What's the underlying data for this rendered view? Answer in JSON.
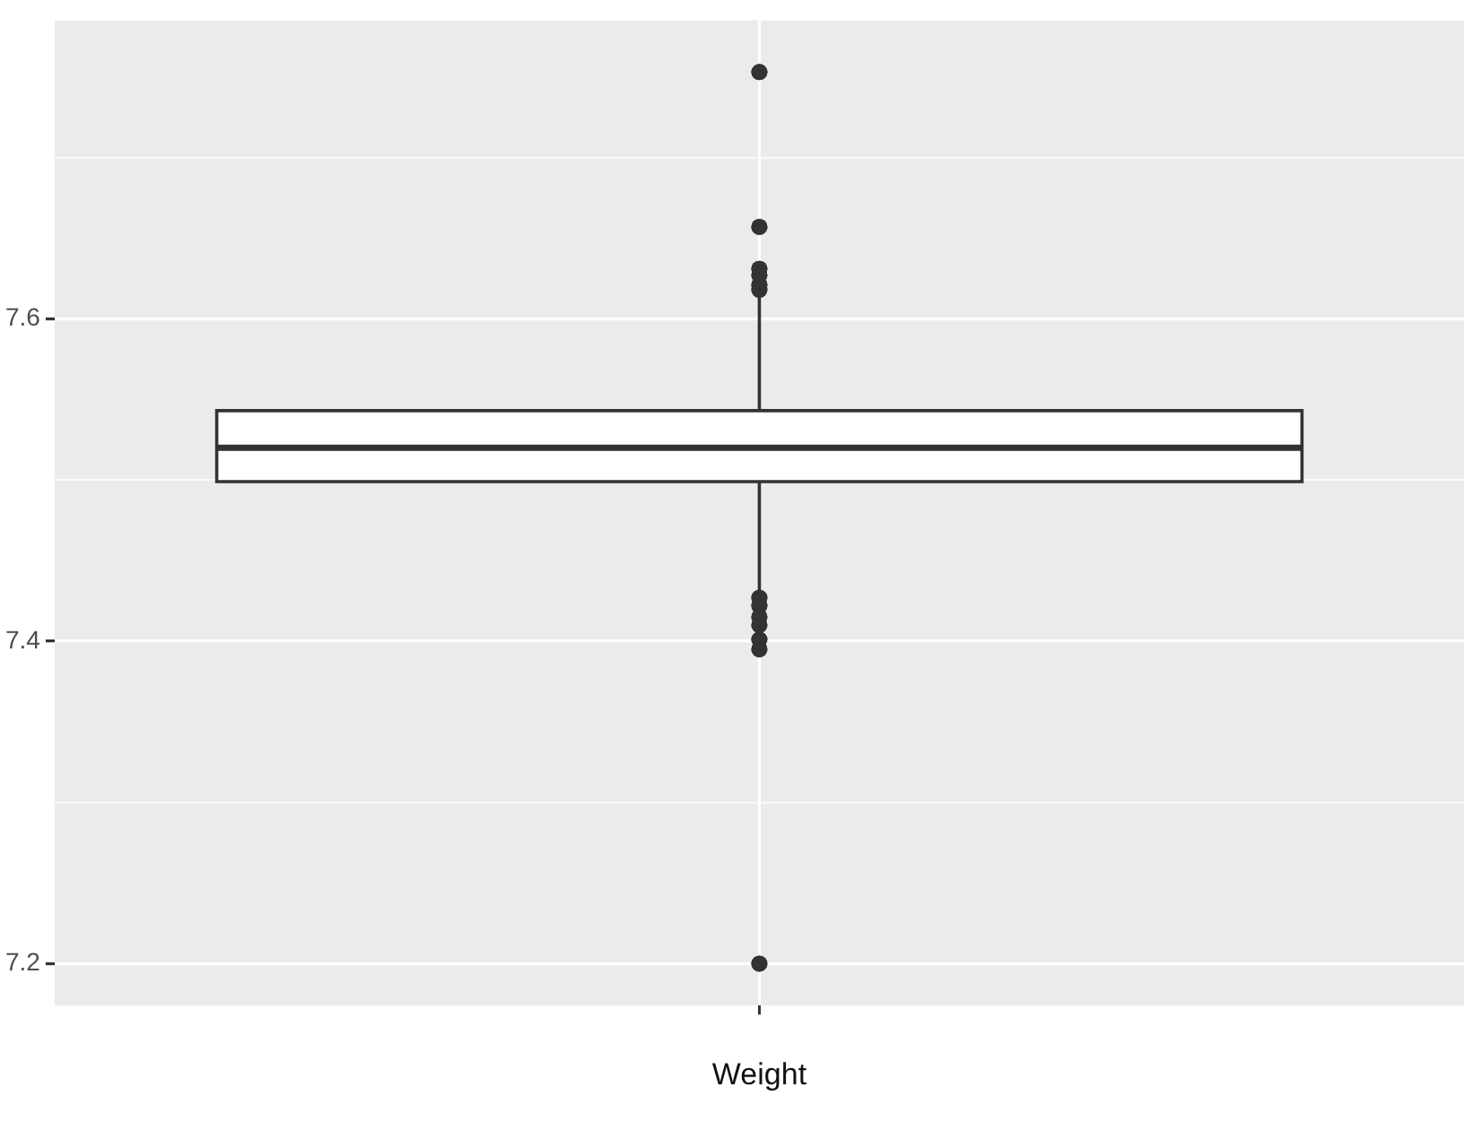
{
  "chart_data": {
    "type": "box",
    "categories": [
      "Weight"
    ],
    "boxes": [
      {
        "low": 7.429,
        "q1": 7.499,
        "median": 7.52,
        "q3": 7.543,
        "high": 7.613,
        "outliers": [
          7.753,
          7.657,
          7.631,
          7.627,
          7.621,
          7.618,
          7.427,
          7.422,
          7.415,
          7.41,
          7.401,
          7.395,
          7.2
        ]
      }
    ],
    "color": "#ffffff",
    "ylim": [
      7.174,
      7.785
    ],
    "yticks": [
      7.2,
      {
        "value": 7.3,
        "label": null
      },
      7.4,
      {
        "value": 7.5,
        "label": null
      },
      7.6,
      {
        "value": 7.7,
        "label": null
      }
    ],
    "grid": true
  }
}
